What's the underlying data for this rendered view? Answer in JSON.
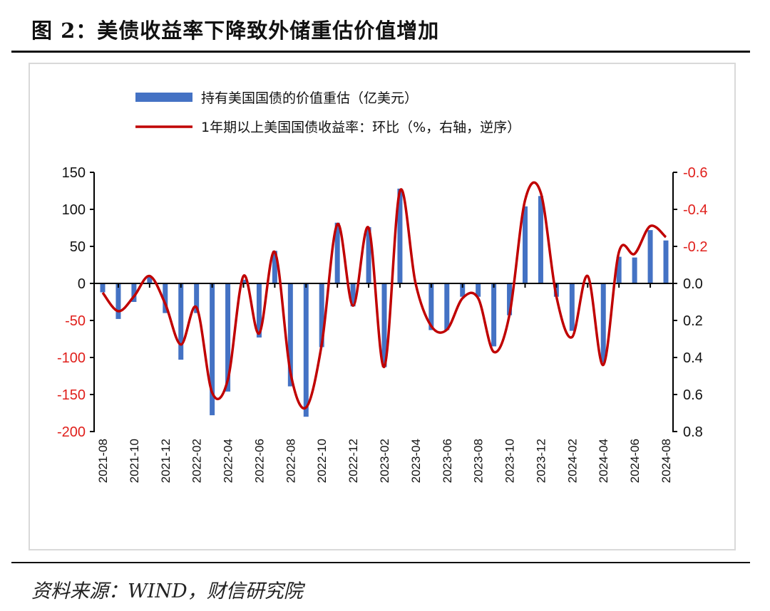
{
  "title": "图 2：美债收益率下降致外储重估价值增加",
  "source": "资料来源：WIND，财信研究院",
  "chart_data": {
    "type": "bar+line",
    "title": "图 2：美债收益率下降致外储重估价值增加",
    "categories": [
      "2021-08",
      "2021-09",
      "2021-10",
      "2021-11",
      "2021-12",
      "2022-01",
      "2022-02",
      "2022-03",
      "2022-04",
      "2022-05",
      "2022-06",
      "2022-07",
      "2022-08",
      "2022-09",
      "2022-10",
      "2022-11",
      "2022-12",
      "2023-01",
      "2023-02",
      "2023-03",
      "2023-04",
      "2023-05",
      "2023-06",
      "2023-07",
      "2023-08",
      "2023-09",
      "2023-10",
      "2023-11",
      "2023-12",
      "2024-01",
      "2024-02",
      "2024-03",
      "2024-04",
      "2024-05",
      "2024-06",
      "2024-07",
      "2024-08"
    ],
    "series": [
      {
        "name": "持有美国国债的价值重估（亿美元）",
        "type": "bar",
        "axis": "left",
        "color": "#4472C4",
        "values": [
          -12,
          -48,
          -25,
          10,
          -40,
          -103,
          -40,
          -178,
          -146,
          5,
          -73,
          44,
          -139,
          -180,
          -86,
          82,
          -31,
          76,
          -113,
          128,
          0,
          -63,
          -63,
          -18,
          -18,
          -85,
          -43,
          104,
          118,
          -18,
          -64,
          0,
          -107,
          36,
          35,
          72,
          58
        ]
      },
      {
        "name": "1年期以上美国国债收益率：环比（%，右轴，逆序）",
        "type": "line",
        "axis": "right",
        "color": "#C00000",
        "values": [
          0.05,
          0.15,
          0.07,
          -0.04,
          0.11,
          0.33,
          0.13,
          0.59,
          0.52,
          -0.04,
          0.27,
          -0.17,
          0.48,
          0.67,
          0.33,
          -0.32,
          0.12,
          -0.3,
          0.45,
          -0.5,
          0.0,
          0.23,
          0.25,
          0.08,
          0.08,
          0.37,
          0.17,
          -0.45,
          -0.49,
          0.07,
          0.29,
          -0.04,
          0.44,
          -0.17,
          -0.16,
          -0.31,
          -0.25
        ]
      }
    ],
    "left_axis": {
      "ylim": [
        -200,
        150
      ],
      "ticks": [
        "150",
        "100",
        "50",
        "0",
        "-50",
        "-100",
        "-150",
        "-200"
      ]
    },
    "right_axis": {
      "ylim": [
        0.8,
        -0.6
      ],
      "reversed": true,
      "ticks": [
        "-0.6",
        "-0.4",
        "-0.2",
        "0.0",
        "0.2",
        "0.4",
        "0.6",
        "0.8"
      ]
    },
    "x_tick_labels": [
      "2021-08",
      "2021-10",
      "2021-12",
      "2022-02",
      "2022-04",
      "2022-06",
      "2022-08",
      "2022-10",
      "2022-12",
      "2023-02",
      "2023-04",
      "2023-06",
      "2023-08",
      "2023-10",
      "2023-12",
      "2024-02",
      "2024-04",
      "2024-06",
      "2024-08"
    ],
    "legend_position": "top-left"
  }
}
